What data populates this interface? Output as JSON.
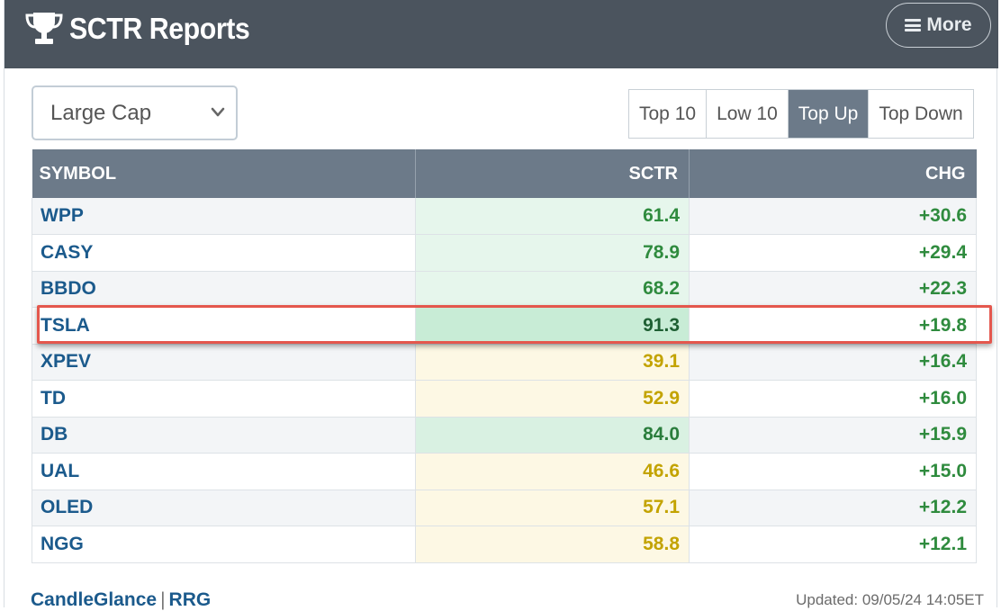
{
  "header": {
    "title": "SCTR Reports",
    "more_label": "More",
    "icon": "trophy-icon"
  },
  "filter": {
    "selected": "Large Cap"
  },
  "tabs": [
    {
      "label": "Top 10",
      "active": false
    },
    {
      "label": "Low 10",
      "active": false
    },
    {
      "label": "Top Up",
      "active": true
    },
    {
      "label": "Top Down",
      "active": false
    }
  ],
  "table": {
    "columns": [
      "SYMBOL",
      "SCTR",
      "CHG"
    ],
    "rows": [
      {
        "symbol": "WPP",
        "sctr": "61.4",
        "chg": "+30.6",
        "tone": "green"
      },
      {
        "symbol": "CASY",
        "sctr": "78.9",
        "chg": "+29.4",
        "tone": "green"
      },
      {
        "symbol": "BBDO",
        "sctr": "68.2",
        "chg": "+22.3",
        "tone": "green"
      },
      {
        "symbol": "TSLA",
        "sctr": "91.3",
        "chg": "+19.8",
        "tone": "strong"
      },
      {
        "symbol": "XPEV",
        "sctr": "39.1",
        "chg": "+16.4",
        "tone": "yellow"
      },
      {
        "symbol": "TD",
        "sctr": "52.9",
        "chg": "+16.0",
        "tone": "yellow"
      },
      {
        "symbol": "DB",
        "sctr": "84.0",
        "chg": "+15.9",
        "tone": "mid"
      },
      {
        "symbol": "UAL",
        "sctr": "46.6",
        "chg": "+15.0",
        "tone": "yellow"
      },
      {
        "symbol": "OLED",
        "sctr": "57.1",
        "chg": "+12.2",
        "tone": "yellow"
      },
      {
        "symbol": "NGG",
        "sctr": "58.8",
        "chg": "+12.1",
        "tone": "yellow"
      }
    ],
    "highlighted_symbol": "TSLA"
  },
  "footer": {
    "link1": "CandleGlance",
    "separator": "|",
    "link2": "RRG",
    "updated": "Updated: 09/05/24 14:05ET"
  },
  "colors": {
    "header_bg": "#4b545e",
    "table_header_bg": "#6c7a89",
    "symbol_link": "#1b5a8c",
    "positive": "#2f8b3e",
    "highlight_border": "#e4574d"
  }
}
